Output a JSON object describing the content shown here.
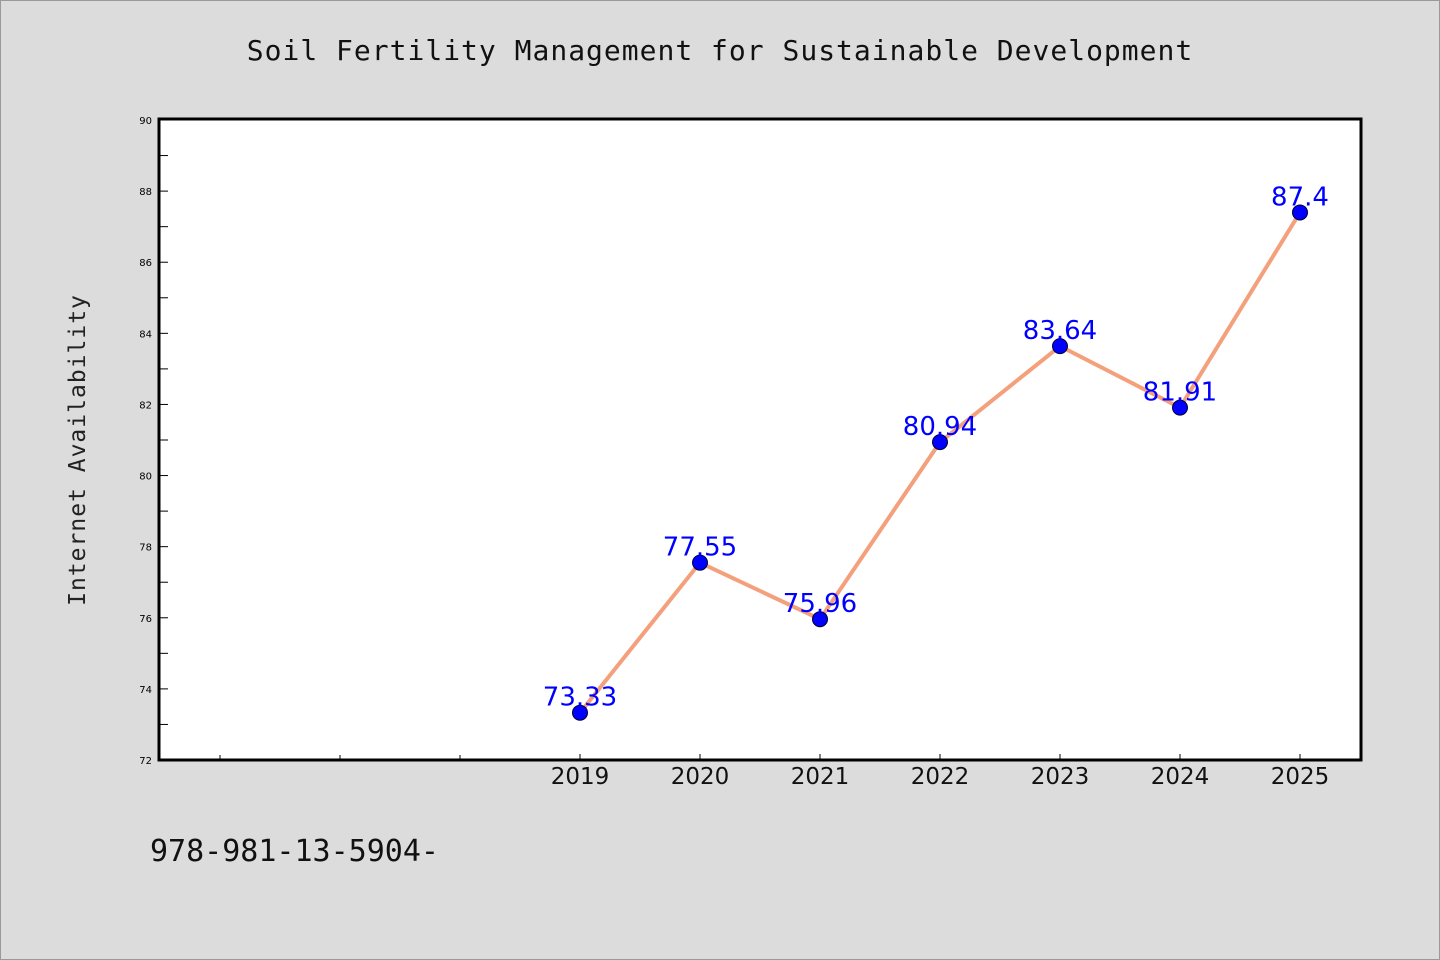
{
  "chart_data": {
    "type": "line",
    "title": "Soil Fertility Management for Sustainable Development",
    "xlabel": "",
    "ylabel": "Internet Availability",
    "categories": [
      "2019",
      "2020",
      "2021",
      "2022",
      "2023",
      "2024",
      "2025"
    ],
    "series": [
      {
        "values": [
          73.33,
          77.55,
          75.96,
          80.94,
          83.64,
          81.91,
          87.4
        ],
        "data_labels": [
          "73.33",
          "77.55",
          "75.96",
          "80.94",
          "83.64",
          "81.91",
          "87.4"
        ]
      }
    ],
    "ylim": [
      72,
      90
    ],
    "yticks": [
      "72",
      "74",
      "76",
      "78",
      "80",
      "82",
      "84",
      "86",
      "88",
      "90"
    ],
    "grid": false,
    "line_color": "#f4a07c",
    "marker_color": "#0000ff",
    "label_color": "#0000ff"
  },
  "footer": {
    "isbn": "978-981-13-5904-"
  }
}
